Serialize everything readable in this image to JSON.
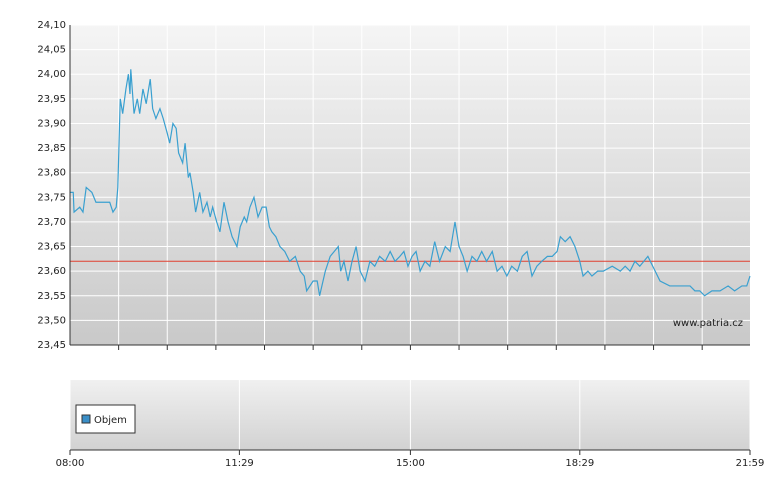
{
  "chart_data": {
    "type": "line",
    "x": [
      "08:00",
      "08:04",
      "08:05",
      "08:12",
      "08:16",
      "08:20",
      "08:27",
      "08:32",
      "08:49",
      "08:53",
      "08:57",
      "08:59",
      "09:02",
      "09:05",
      "09:09",
      "09:12",
      "09:14",
      "09:15",
      "09:19",
      "09:23",
      "09:26",
      "09:30",
      "09:34",
      "09:39",
      "09:42",
      "09:46",
      "09:51",
      "09:55",
      "10:00",
      "10:03",
      "10:07",
      "10:11",
      "10:14",
      "10:19",
      "10:22",
      "10:26",
      "10:28",
      "10:32",
      "10:35",
      "10:40",
      "10:44",
      "10:49",
      "10:53",
      "10:56",
      "11:01",
      "11:05",
      "11:10",
      "11:15",
      "11:20",
      "11:26",
      "11:30",
      "11:35",
      "11:38",
      "11:42",
      "11:47",
      "11:52",
      "11:57",
      "12:02",
      "12:06",
      "12:09",
      "12:14",
      "12:19",
      "12:25",
      "12:31",
      "12:38",
      "12:44",
      "12:49",
      "12:52",
      "13:00",
      "13:05",
      "13:08",
      "13:15",
      "13:21",
      "13:26",
      "13:31",
      "13:34",
      "13:38",
      "13:43",
      "13:48",
      "13:53",
      "13:58",
      "14:04",
      "14:10",
      "14:16",
      "14:22",
      "14:29",
      "14:35",
      "14:41",
      "14:47",
      "14:52",
      "14:57",
      "15:02",
      "15:07",
      "15:12",
      "15:18",
      "15:24",
      "15:30",
      "15:36",
      "15:43",
      "15:49",
      "15:55",
      "16:00",
      "16:05",
      "16:10",
      "16:16",
      "16:22",
      "16:28",
      "16:34",
      "16:41",
      "16:47",
      "16:53",
      "16:59",
      "17:05",
      "17:12",
      "17:18",
      "17:24",
      "17:30",
      "17:36",
      "17:42",
      "17:49",
      "17:55",
      "18:01",
      "18:05",
      "18:11",
      "18:17",
      "18:23",
      "18:29",
      "18:33",
      "18:39",
      "18:44",
      "18:51",
      "18:58",
      "19:09",
      "19:19",
      "19:25",
      "19:31",
      "19:37",
      "19:43",
      "19:53",
      "20:02",
      "20:08",
      "20:20",
      "20:39",
      "20:45",
      "20:51",
      "20:57",
      "21:03",
      "21:12",
      "21:22",
      "21:32",
      "21:40",
      "21:49",
      "21:55",
      "21:59"
    ],
    "values": [
      23.76,
      23.76,
      23.72,
      23.73,
      23.72,
      23.77,
      23.76,
      23.74,
      23.74,
      23.72,
      23.73,
      23.77,
      23.95,
      23.92,
      23.97,
      24.0,
      23.96,
      24.01,
      23.92,
      23.95,
      23.92,
      23.97,
      23.94,
      23.99,
      23.93,
      23.91,
      23.93,
      23.91,
      23.88,
      23.86,
      23.9,
      23.89,
      23.84,
      23.82,
      23.86,
      23.79,
      23.8,
      23.76,
      23.72,
      23.76,
      23.72,
      23.74,
      23.71,
      23.73,
      23.7,
      23.68,
      23.74,
      23.7,
      23.67,
      23.65,
      23.69,
      23.71,
      23.7,
      23.73,
      23.75,
      23.71,
      23.73,
      23.73,
      23.69,
      23.68,
      23.67,
      23.65,
      23.64,
      23.62,
      23.63,
      23.6,
      23.59,
      23.56,
      23.58,
      23.58,
      23.55,
      23.6,
      23.63,
      23.64,
      23.65,
      23.6,
      23.62,
      23.58,
      23.62,
      23.65,
      23.6,
      23.58,
      23.62,
      23.61,
      23.63,
      23.62,
      23.64,
      23.62,
      23.63,
      23.64,
      23.61,
      23.63,
      23.64,
      23.6,
      23.62,
      23.61,
      23.66,
      23.62,
      23.65,
      23.64,
      23.7,
      23.65,
      23.63,
      23.6,
      23.63,
      23.62,
      23.64,
      23.62,
      23.64,
      23.6,
      23.61,
      23.59,
      23.61,
      23.6,
      23.63,
      23.64,
      23.59,
      23.61,
      23.62,
      23.63,
      23.63,
      23.64,
      23.67,
      23.66,
      23.67,
      23.65,
      23.62,
      23.59,
      23.6,
      23.59,
      23.6,
      23.6,
      23.61,
      23.6,
      23.61,
      23.6,
      23.62,
      23.61,
      23.63,
      23.6,
      23.58,
      23.57,
      23.57,
      23.57,
      23.56,
      23.56,
      23.55,
      23.56,
      23.56,
      23.57,
      23.56,
      23.57,
      23.57,
      23.59
    ],
    "color": "#3aa0d0",
    "ylim": [
      23.45,
      24.1
    ],
    "yticks": [
      {
        "value": 23.45,
        "label": "23,45"
      },
      {
        "value": 23.5,
        "label": "23,50"
      },
      {
        "value": 23.55,
        "label": "23,55"
      },
      {
        "value": 23.6,
        "label": "23,60"
      },
      {
        "value": 23.65,
        "label": "23,65"
      },
      {
        "value": 23.7,
        "label": "23,70"
      },
      {
        "value": 23.75,
        "label": "23,75"
      },
      {
        "value": 23.8,
        "label": "23,80"
      },
      {
        "value": 23.85,
        "label": "23,85"
      },
      {
        "value": 23.9,
        "label": "23,90"
      },
      {
        "value": 23.95,
        "label": "23,95"
      },
      {
        "value": 24.0,
        "label": "24,00"
      },
      {
        "value": 24.05,
        "label": "24,05"
      },
      {
        "value": 24.1,
        "label": "24,10"
      }
    ],
    "xlim": [
      "08:00",
      "21:59"
    ],
    "xticks": [
      "08:00",
      "11:29",
      "15:00",
      "18:29",
      "21:59"
    ],
    "grid": true,
    "reference_line": {
      "value": 23.62,
      "color": "#e04030"
    },
    "watermark": "www.patria.cz",
    "volume_panel": {
      "legend": "Objem",
      "color": "#3a8fc8"
    }
  }
}
